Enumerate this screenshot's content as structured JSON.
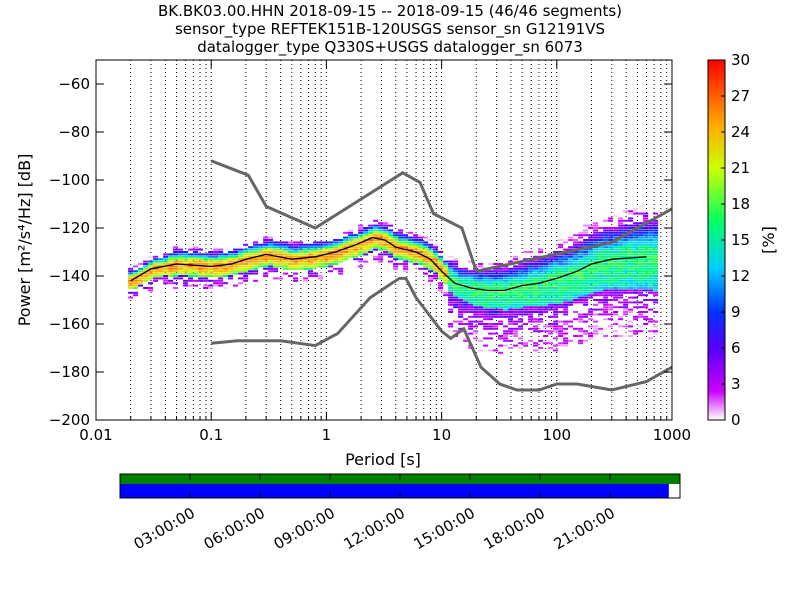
{
  "chart_data": [
    {
      "type": "heatmap",
      "title_lines": [
        "BK.BK03.00.HHN   2018-09-15 -- 2018-09-15  (46/46 segments)",
        "sensor_type REFTEK151B-120USGS sensor_sn G12191VS",
        "datalogger_type Q330S+USGS datalogger_sn 6073"
      ],
      "xlabel": "Period [s]",
      "ylabel": "Power [m²/s⁴/Hz] [dB]",
      "xscale": "log",
      "xlim": [
        0.01,
        1000
      ],
      "ylim": [
        -200,
        -50
      ],
      "x_ticks": [
        {
          "value": 0.01,
          "label": "0.01"
        },
        {
          "value": 0.1,
          "label": "0.1"
        },
        {
          "value": 1,
          "label": "1"
        },
        {
          "value": 10,
          "label": "10"
        },
        {
          "value": 100,
          "label": "100"
        },
        {
          "value": 1000,
          "label": "1000"
        }
      ],
      "y_ticks": [
        {
          "value": -60,
          "label": "−60"
        },
        {
          "value": -80,
          "label": "−80"
        },
        {
          "value": -100,
          "label": "−100"
        },
        {
          "value": -120,
          "label": "−120"
        },
        {
          "value": -140,
          "label": "−140"
        },
        {
          "value": -160,
          "label": "−160"
        },
        {
          "value": -180,
          "label": "−180"
        },
        {
          "value": -200,
          "label": "−200"
        }
      ],
      "grid": "dotted-vertical",
      "noise_models": [
        {
          "points": [
            [
              0.1,
              -92
            ],
            [
              0.21,
              -98
            ],
            [
              0.3,
              -111
            ],
            [
              0.8,
              -120
            ],
            [
              4.6,
              -97
            ],
            [
              6.5,
              -101
            ],
            [
              8.5,
              -114
            ],
            [
              15,
              -120
            ],
            [
              20,
              -138
            ],
            [
              300,
              -126
            ],
            [
              1000,
              -112
            ]
          ]
        },
        {
          "points": [
            [
              0.1,
              -168
            ],
            [
              0.17,
              -167
            ],
            [
              0.4,
              -167
            ],
            [
              0.8,
              -169
            ],
            [
              1.25,
              -164
            ],
            [
              2.4,
              -149
            ],
            [
              3.7,
              -143
            ],
            [
              4.3,
              -141
            ],
            [
              4.9,
              -141
            ],
            [
              6,
              -149
            ],
            [
              10,
              -163
            ],
            [
              12,
              -166
            ],
            [
              15.6,
              -162
            ],
            [
              22,
              -178
            ],
            [
              32,
              -185
            ],
            [
              45,
              -187.5
            ],
            [
              70,
              -187.5
            ],
            [
              100,
              -185
            ],
            [
              150,
              -185
            ],
            [
              300,
              -187.5
            ],
            [
              600,
              -184
            ],
            [
              1000,
              -178
            ]
          ]
        }
      ],
      "mean_curve": [
        [
          0.02,
          -142
        ],
        [
          0.03,
          -137
        ],
        [
          0.05,
          -135
        ],
        [
          0.1,
          -136
        ],
        [
          0.15,
          -135
        ],
        [
          0.2,
          -133
        ],
        [
          0.3,
          -131
        ],
        [
          0.5,
          -133
        ],
        [
          0.8,
          -132
        ],
        [
          1.2,
          -130
        ],
        [
          1.8,
          -127
        ],
        [
          2.5,
          -124
        ],
        [
          3.2,
          -125
        ],
        [
          4,
          -128
        ],
        [
          6,
          -130
        ],
        [
          8,
          -133
        ],
        [
          10,
          -138
        ],
        [
          13,
          -143
        ],
        [
          18,
          -145
        ],
        [
          25,
          -146
        ],
        [
          35,
          -146
        ],
        [
          50,
          -144
        ],
        [
          70,
          -143
        ],
        [
          100,
          -141
        ],
        [
          150,
          -138
        ],
        [
          200,
          -135
        ],
        [
          300,
          -133
        ],
        [
          600,
          -132
        ]
      ],
      "colorbar": {
        "label": "[%]",
        "range": [
          0,
          30
        ],
        "ticks": [
          "0",
          "3",
          "6",
          "9",
          "12",
          "15",
          "18",
          "21",
          "24",
          "27",
          "30"
        ]
      }
    },
    {
      "type": "timeline",
      "tick_labels": [
        "03:00:00",
        "06:00:00",
        "09:00:00",
        "12:00:00",
        "15:00:00",
        "18:00:00",
        "21:00:00"
      ],
      "bars": [
        {
          "color": "#008000",
          "coverage": 1.0
        },
        {
          "color": "#0000ff",
          "coverage": 0.98
        }
      ]
    }
  ]
}
